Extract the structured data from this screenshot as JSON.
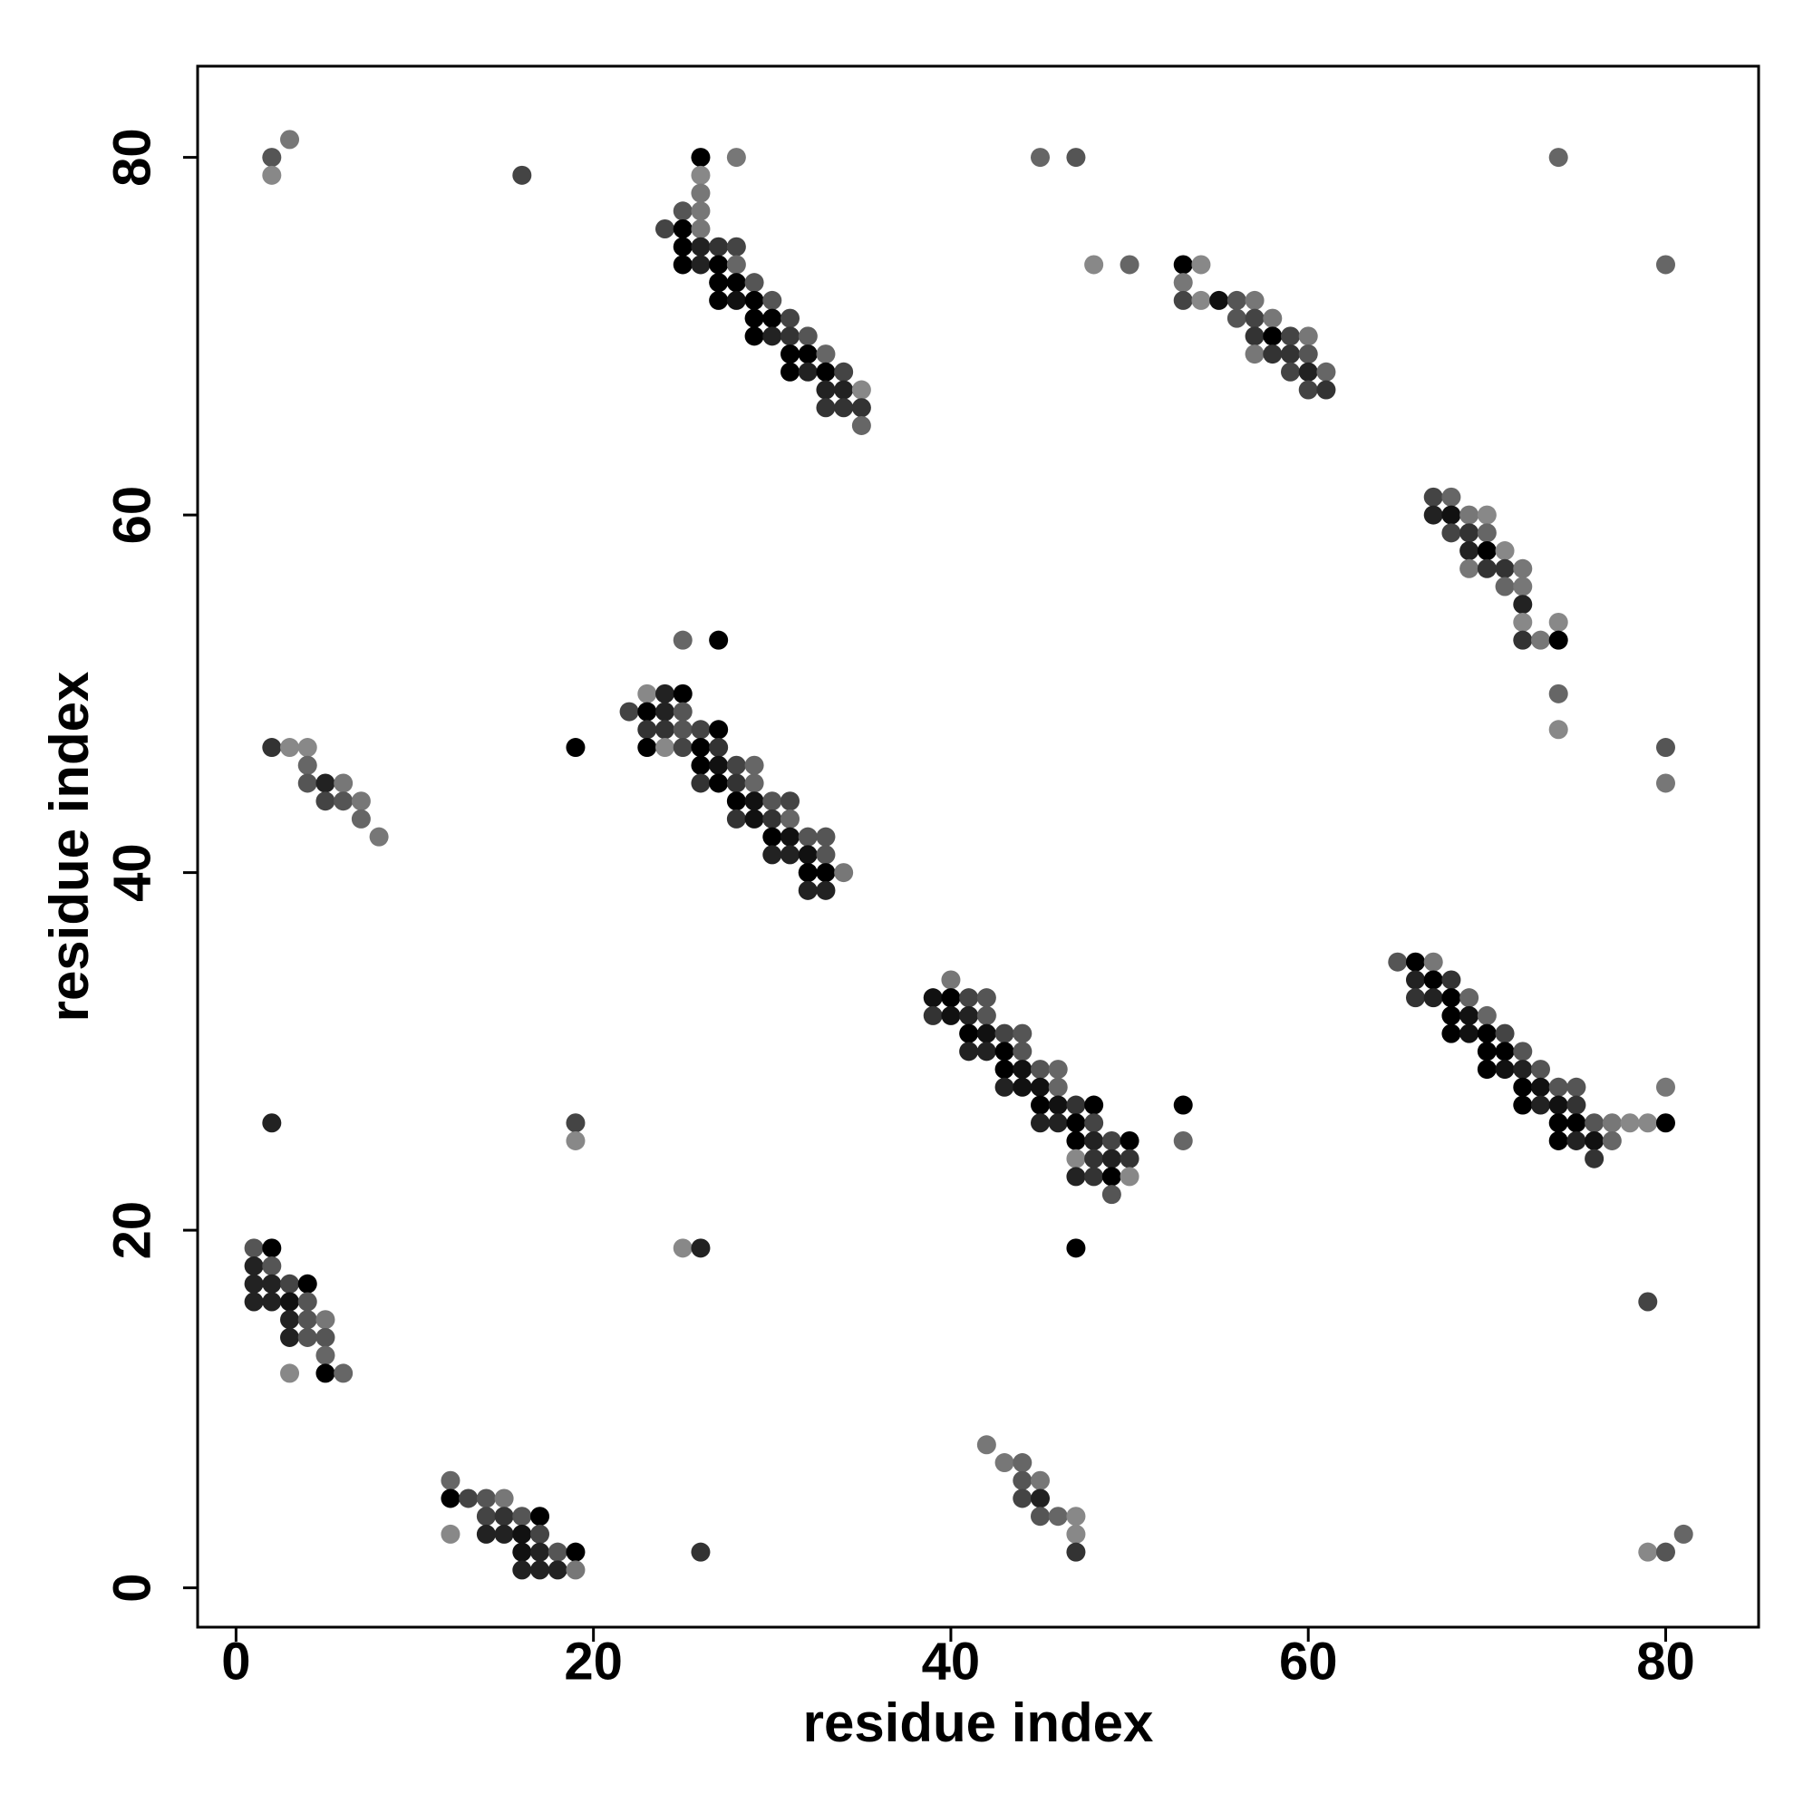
{
  "chart_data": {
    "type": "scatter",
    "xlabel": "residue index",
    "ylabel": "residue index",
    "xlim": [
      -2.15,
      85.2
    ],
    "ylim": [
      -2.2,
      85.1
    ],
    "xticks": [
      0,
      20,
      40,
      60,
      80
    ],
    "yticks": [
      0,
      20,
      40,
      60,
      80
    ],
    "grid": false,
    "x": [
      2,
      2,
      3,
      16,
      26,
      28,
      45,
      47,
      74,
      48,
      50,
      80,
      26,
      26,
      25,
      26,
      24,
      25,
      26,
      25,
      26,
      27,
      28,
      25,
      26,
      27,
      28,
      27,
      28,
      29,
      27,
      28,
      29,
      30,
      29,
      30,
      31,
      29,
      30,
      31,
      32,
      31,
      32,
      33,
      31,
      32,
      33,
      34,
      33,
      34,
      35,
      33,
      34,
      35,
      35,
      53,
      54,
      53,
      53,
      54,
      55,
      56,
      57,
      56,
      57,
      58,
      57,
      58,
      59,
      60,
      57,
      58,
      59,
      60,
      59,
      60,
      61,
      60,
      61,
      67,
      68,
      67,
      68,
      69,
      70,
      68,
      69,
      70,
      69,
      70,
      71,
      69,
      70,
      71,
      72,
      71,
      72,
      72,
      72,
      74,
      72,
      73,
      74,
      74,
      74,
      25,
      27,
      22,
      23,
      24,
      25,
      23,
      24,
      25,
      23,
      24,
      25,
      26,
      27,
      23,
      24,
      25,
      26,
      27,
      26,
      27,
      28,
      29,
      26,
      27,
      28,
      29,
      28,
      29,
      30,
      31,
      28,
      29,
      30,
      31,
      30,
      31,
      32,
      33,
      30,
      31,
      32,
      33,
      32,
      33,
      34,
      32,
      33,
      19,
      2,
      3,
      4,
      4,
      4,
      5,
      6,
      5,
      6,
      7,
      7,
      8,
      80,
      80,
      40,
      39,
      40,
      41,
      42,
      39,
      40,
      41,
      42,
      41,
      42,
      43,
      44,
      41,
      42,
      43,
      44,
      43,
      44,
      45,
      46,
      43,
      44,
      45,
      46,
      45,
      46,
      47,
      48,
      45,
      46,
      47,
      48,
      47,
      48,
      49,
      50,
      47,
      48,
      49,
      50,
      47,
      48,
      49,
      50,
      49,
      53,
      53,
      47,
      65,
      66,
      67,
      66,
      67,
      68,
      66,
      67,
      68,
      69,
      68,
      69,
      70,
      68,
      69,
      70,
      71,
      70,
      71,
      72,
      70,
      71,
      72,
      73,
      72,
      73,
      74,
      75,
      72,
      73,
      74,
      75,
      74,
      75,
      76,
      77,
      78,
      79,
      80,
      74,
      75,
      76,
      77,
      76,
      80,
      79,
      2,
      19,
      19,
      25,
      26,
      26,
      79,
      80,
      81,
      1,
      2,
      1,
      2,
      1,
      2,
      3,
      4,
      1,
      2,
      3,
      4,
      3,
      4,
      5,
      3,
      4,
      5,
      5,
      3,
      5,
      6,
      12,
      12,
      13,
      14,
      15,
      14,
      15,
      16,
      17,
      12,
      14,
      15,
      16,
      17,
      16,
      17,
      18,
      19,
      16,
      17,
      18,
      19,
      42,
      43,
      44,
      44,
      45,
      44,
      45,
      45,
      46,
      47,
      47,
      47
    ],
    "values": [
      80,
      79,
      81,
      79,
      80,
      80,
      80,
      80,
      80,
      74,
      74,
      74,
      79,
      78,
      77,
      77,
      76,
      76,
      76,
      75,
      75,
      75,
      75,
      74,
      74,
      74,
      74,
      73,
      73,
      73,
      72,
      72,
      72,
      72,
      71,
      71,
      71,
      70,
      70,
      70,
      70,
      69,
      69,
      69,
      68,
      68,
      68,
      68,
      67,
      67,
      67,
      66,
      66,
      66,
      65,
      74,
      74,
      73,
      72,
      72,
      72,
      72,
      72,
      71,
      71,
      71,
      70,
      70,
      70,
      70,
      69,
      69,
      69,
      69,
      68,
      68,
      68,
      67,
      67,
      61,
      61,
      60,
      60,
      60,
      60,
      59,
      59,
      59,
      58,
      58,
      58,
      57,
      57,
      57,
      57,
      56,
      56,
      55,
      54,
      54,
      53,
      53,
      53,
      50,
      48,
      53,
      53,
      49,
      50,
      50,
      50,
      49,
      49,
      49,
      48,
      48,
      48,
      48,
      48,
      47,
      47,
      47,
      47,
      47,
      46,
      46,
      46,
      46,
      45,
      45,
      45,
      45,
      44,
      44,
      44,
      44,
      43,
      43,
      43,
      43,
      42,
      42,
      42,
      42,
      41,
      41,
      41,
      41,
      40,
      40,
      40,
      39,
      39,
      47,
      47,
      47,
      47,
      46,
      45,
      45,
      45,
      44,
      44,
      44,
      43,
      42,
      47,
      45,
      34,
      33,
      33,
      33,
      33,
      32,
      32,
      32,
      32,
      31,
      31,
      31,
      31,
      30,
      30,
      30,
      30,
      29,
      29,
      29,
      29,
      28,
      28,
      28,
      28,
      27,
      27,
      27,
      27,
      26,
      26,
      26,
      26,
      25,
      25,
      25,
      25,
      24,
      24,
      24,
      24,
      23,
      23,
      23,
      23,
      22,
      27,
      25,
      19,
      35,
      35,
      35,
      34,
      34,
      34,
      33,
      33,
      33,
      33,
      32,
      32,
      32,
      31,
      31,
      31,
      31,
      30,
      30,
      30,
      29,
      29,
      29,
      29,
      28,
      28,
      28,
      28,
      27,
      27,
      27,
      27,
      26,
      26,
      26,
      26,
      26,
      26,
      26,
      25,
      25,
      25,
      25,
      24,
      28,
      16,
      26,
      26,
      25,
      19,
      19,
      2,
      2,
      2,
      3,
      19,
      19,
      18,
      18,
      17,
      17,
      17,
      17,
      16,
      16,
      16,
      16,
      15,
      15,
      15,
      14,
      14,
      14,
      13,
      12,
      12,
      12,
      6,
      5,
      5,
      5,
      5,
      4,
      4,
      4,
      4,
      3,
      3,
      3,
      3,
      3,
      2,
      2,
      2,
      2,
      1,
      1,
      1,
      1,
      8,
      7,
      7,
      6,
      6,
      5,
      5,
      4,
      4,
      4,
      3,
      2
    ],
    "colors": [
      "#555",
      "#888",
      "#777",
      "#444",
      "#000",
      "#777",
      "#666",
      "#555",
      "#666",
      "#888",
      "#666",
      "#666",
      "#888",
      "#777",
      "#555",
      "#777",
      "#444",
      "#000",
      "#777",
      "#000",
      "#222",
      "#333",
      "#444",
      "#000",
      "#222",
      "#000",
      "#666",
      "#000",
      "#000",
      "#555",
      "#000",
      "#111",
      "#000",
      "#555",
      "#000",
      "#000",
      "#444",
      "#000",
      "#222",
      "#333",
      "#555",
      "#000",
      "#000",
      "#666",
      "#000",
      "#222",
      "#000",
      "#444",
      "#222",
      "#222",
      "#888",
      "#333",
      "#333",
      "#333",
      "#666",
      "#000",
      "#888",
      "#777",
      "#444",
      "#888",
      "#111",
      "#555",
      "#777",
      "#555",
      "#444",
      "#777",
      "#333",
      "#000",
      "#444",
      "#777",
      "#777",
      "#333",
      "#333",
      "#555",
      "#444",
      "#222",
      "#666",
      "#444",
      "#333",
      "#444",
      "#666",
      "#222",
      "#111",
      "#777",
      "#888",
      "#444",
      "#333",
      "#666",
      "#222",
      "#000",
      "#888",
      "#777",
      "#333",
      "#333",
      "#777",
      "#666",
      "#777",
      "#222",
      "#888",
      "#888",
      "#333",
      "#777",
      "#000",
      "#666",
      "#888",
      "#666",
      "#000",
      "#444",
      "#888",
      "#222",
      "#000",
      "#000",
      "#222",
      "#555",
      "#333",
      "#333",
      "#555",
      "#444",
      "#000",
      "#000",
      "#888",
      "#444",
      "#000",
      "#333",
      "#000",
      "#111",
      "#444",
      "#666",
      "#333",
      "#000",
      "#333",
      "#666",
      "#000",
      "#111",
      "#555",
      "#444",
      "#333",
      "#111",
      "#333",
      "#666",
      "#000",
      "#111",
      "#555",
      "#555",
      "#222",
      "#222",
      "#111",
      "#555",
      "#000",
      "#000",
      "#777",
      "#222",
      "#222",
      "#000",
      "#333",
      "#888",
      "#888",
      "#666",
      "#555",
      "#222",
      "#777",
      "#444",
      "#555",
      "#777",
      "#666",
      "#777",
      "#555",
      "#777",
      "#777",
      "#111",
      "#000",
      "#444",
      "#555",
      "#333",
      "#111",
      "#222",
      "#555",
      "#000",
      "#111",
      "#444",
      "#555",
      "#222",
      "#222",
      "#000",
      "#555",
      "#000",
      "#111",
      "#555",
      "#666",
      "#222",
      "#111",
      "#111",
      "#666",
      "#000",
      "#111",
      "#333",
      "#000",
      "#222",
      "#222",
      "#000",
      "#444",
      "#000",
      "#222",
      "#444",
      "#000",
      "#888",
      "#333",
      "#222",
      "#333",
      "#222",
      "#333",
      "#000",
      "#888",
      "#555",
      "#000",
      "#666",
      "#000",
      "#555",
      "#000",
      "#777",
      "#222",
      "#000",
      "#333",
      "#333",
      "#222",
      "#000",
      "#666",
      "#000",
      "#111",
      "#666",
      "#000",
      "#111",
      "#000",
      "#444",
      "#000",
      "#000",
      "#555",
      "#000",
      "#111",
      "#222",
      "#555",
      "#000",
      "#111",
      "#555",
      "#555",
      "#000",
      "#222",
      "#111",
      "#333",
      "#000",
      "#000",
      "#555",
      "#777",
      "#888",
      "#888",
      "#000",
      "#000",
      "#222",
      "#111",
      "#666",
      "#333",
      "#777",
      "#444",
      "#222",
      "#444",
      "#888",
      "#888",
      "#222",
      "#333",
      "#888",
      "#555",
      "#666",
      "#555",
      "#000",
      "#222",
      "#555",
      "#222",
      "#222",
      "#444",
      "#000",
      "#222",
      "#222",
      "#111",
      "#555",
      "#222",
      "#555",
      "#777",
      "#222",
      "#555",
      "#555",
      "#666",
      "#888",
      "#000",
      "#666",
      "#666",
      "#000",
      "#444",
      "#555",
      "#777",
      "#444",
      "#333",
      "#555",
      "#000",
      "#888",
      "#222",
      "#222",
      "#111",
      "#444",
      "#111",
      "#222",
      "#555",
      "#000",
      "#222",
      "#222",
      "#222",
      "#777",
      "#777",
      "#777",
      "#666",
      "#555",
      "#777",
      "#444",
      "#222",
      "#555",
      "#666",
      "#888",
      "#888",
      "#333"
    ]
  }
}
